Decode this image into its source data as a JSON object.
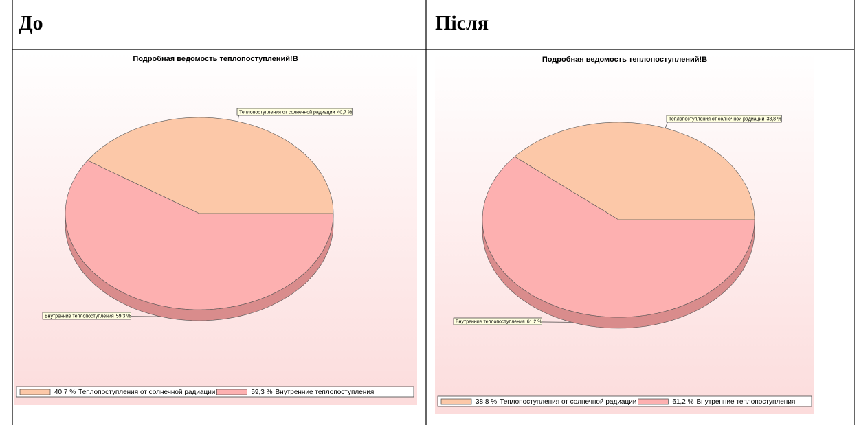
{
  "table": {
    "headers": [
      "До",
      "Після"
    ]
  },
  "chart_data": [
    {
      "type": "pie",
      "title": "Подробная ведомость теплопоступлений!В",
      "categories": [
        "Теплопоступления от солнечной радиации",
        "Внутренние теплопоступления"
      ],
      "values": [
        40.7,
        59.3
      ],
      "value_labels": [
        "40,7 %",
        "59,3 %"
      ],
      "colors": [
        "#fcc8a8",
        "#fdb0b0"
      ]
    },
    {
      "type": "pie",
      "title": "Подробная ведомость теплопоступлений!В",
      "categories": [
        "Теплопоступления от солнечной радиации",
        "Внутренние теплопоступления"
      ],
      "values": [
        38.8,
        61.2
      ],
      "value_labels": [
        "38,8 %",
        "61,2 %"
      ],
      "colors": [
        "#fcc8a8",
        "#fdb0b0"
      ]
    }
  ]
}
